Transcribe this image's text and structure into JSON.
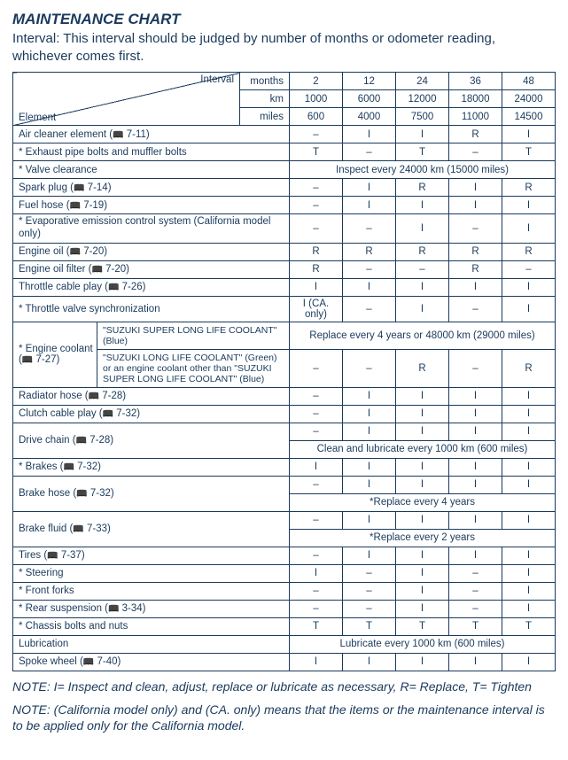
{
  "title": "MAINTENANCE CHART",
  "subtitle": "Interval: This interval should be judged by number of months or odometer reading, whichever comes first.",
  "header": {
    "interval_label": "Interval",
    "months_label": "months",
    "km_label": "km",
    "miles_label": "miles",
    "element_label": "Element",
    "months": [
      "2",
      "12",
      "24",
      "36",
      "48"
    ],
    "km": [
      "1000",
      "6000",
      "12000",
      "18000",
      "24000"
    ],
    "miles": [
      "600",
      "4000",
      "7500",
      "11000",
      "14500"
    ]
  },
  "rows": [
    {
      "label": "Air cleaner element (",
      "ref": "7-11)",
      "cells": [
        "–",
        "I",
        "I",
        "R",
        "I"
      ]
    },
    {
      "label": "* Exhaust pipe bolts and muffler bolts",
      "cells": [
        "T",
        "–",
        "T",
        "–",
        "T"
      ]
    },
    {
      "label": "* Valve clearance",
      "span_text": "Inspect every 24000 km (15000 miles)"
    },
    {
      "label": "Spark plug (",
      "ref": "7-14)",
      "cells": [
        "–",
        "I",
        "R",
        "I",
        "R"
      ]
    },
    {
      "label": "Fuel hose (",
      "ref": "7-19)",
      "cells": [
        "–",
        "I",
        "I",
        "I",
        "I"
      ]
    },
    {
      "label": "* Evaporative emission control system (California model only)",
      "cells": [
        "–",
        "–",
        "I",
        "–",
        "I"
      ],
      "tall": true
    },
    {
      "label": "Engine oil (",
      "ref": "7-20)",
      "cells": [
        "R",
        "R",
        "R",
        "R",
        "R"
      ]
    },
    {
      "label": "Engine oil filter (",
      "ref": "7-20)",
      "cells": [
        "R",
        "–",
        "–",
        "R",
        "–"
      ]
    },
    {
      "label": "Throttle cable play (",
      "ref": "7-26)",
      "cells": [
        "I",
        "I",
        "I",
        "I",
        "I"
      ]
    },
    {
      "label": "* Throttle valve synchronization",
      "cells": [
        "I (CA. only)",
        "–",
        "I",
        "–",
        "I"
      ]
    }
  ],
  "coolant": {
    "group_label1": "* Engine coolant",
    "group_label2": "(",
    "group_ref": "7-27)",
    "row1_desc": "\"SUZUKI SUPER LONG LIFE COOLANT\" (Blue)",
    "row1_span": "Replace every 4 years or 48000 km (29000 miles)",
    "row2_desc": "\"SUZUKI LONG LIFE COOLANT\" (Green) or an engine coolant other than \"SUZUKI SUPER LONG LIFE COOLANT\" (Blue)",
    "row2_cells": [
      "–",
      "–",
      "R",
      "–",
      "R"
    ]
  },
  "rows2": [
    {
      "label": "Radiator hose (",
      "ref": "7-28)",
      "cells": [
        "–",
        "I",
        "I",
        "I",
        "I"
      ]
    },
    {
      "label": "Clutch cable play (",
      "ref": "7-32)",
      "cells": [
        "–",
        "I",
        "I",
        "I",
        "I"
      ]
    }
  ],
  "drive_chain": {
    "label": "Drive chain (",
    "ref": "7-28)",
    "cells": [
      "–",
      "I",
      "I",
      "I",
      "I"
    ],
    "span": "Clean and lubricate every 1000 km (600 miles)"
  },
  "brakes": {
    "label": "* Brakes (",
    "ref": "7-32)",
    "cells": [
      "I",
      "I",
      "I",
      "I",
      "I"
    ]
  },
  "brake_hose": {
    "label": "Brake hose (",
    "ref": "7-32)",
    "cells": [
      "–",
      "I",
      "I",
      "I",
      "I"
    ],
    "span": "*Replace every 4 years"
  },
  "brake_fluid": {
    "label": "Brake fluid (",
    "ref": "7-33)",
    "cells": [
      "–",
      "I",
      "I",
      "I",
      "I"
    ],
    "span": "*Replace every 2 years"
  },
  "rows3": [
    {
      "label": "Tires (",
      "ref": "7-37)",
      "cells": [
        "–",
        "I",
        "I",
        "I",
        "I"
      ]
    },
    {
      "label": "* Steering",
      "cells": [
        "I",
        "–",
        "I",
        "–",
        "I"
      ]
    },
    {
      "label": "* Front forks",
      "cells": [
        "–",
        "–",
        "I",
        "–",
        "I"
      ]
    },
    {
      "label": "* Rear suspension (",
      "ref": "3-34)",
      "cells": [
        "–",
        "–",
        "I",
        "–",
        "I"
      ]
    },
    {
      "label": "* Chassis bolts and nuts",
      "cells": [
        "T",
        "T",
        "T",
        "T",
        "T"
      ]
    },
    {
      "label": "Lubrication",
      "span_text": "Lubricate every 1000 km (600 miles)"
    },
    {
      "label": "Spoke wheel (",
      "ref": "7-40)",
      "cells": [
        "I",
        "I",
        "I",
        "I",
        "I"
      ]
    }
  ],
  "note1": "NOTE: I= Inspect and clean, adjust, replace or lubricate as necessary, R= Replace, T= Tighten",
  "note2": "NOTE: (California model only) and (CA. only) means that the items or the maintenance interval is to be applied only for the California model.",
  "colors": {
    "text": "#1a3a5c",
    "border": "#1a3a5c",
    "background": "#ffffff"
  }
}
